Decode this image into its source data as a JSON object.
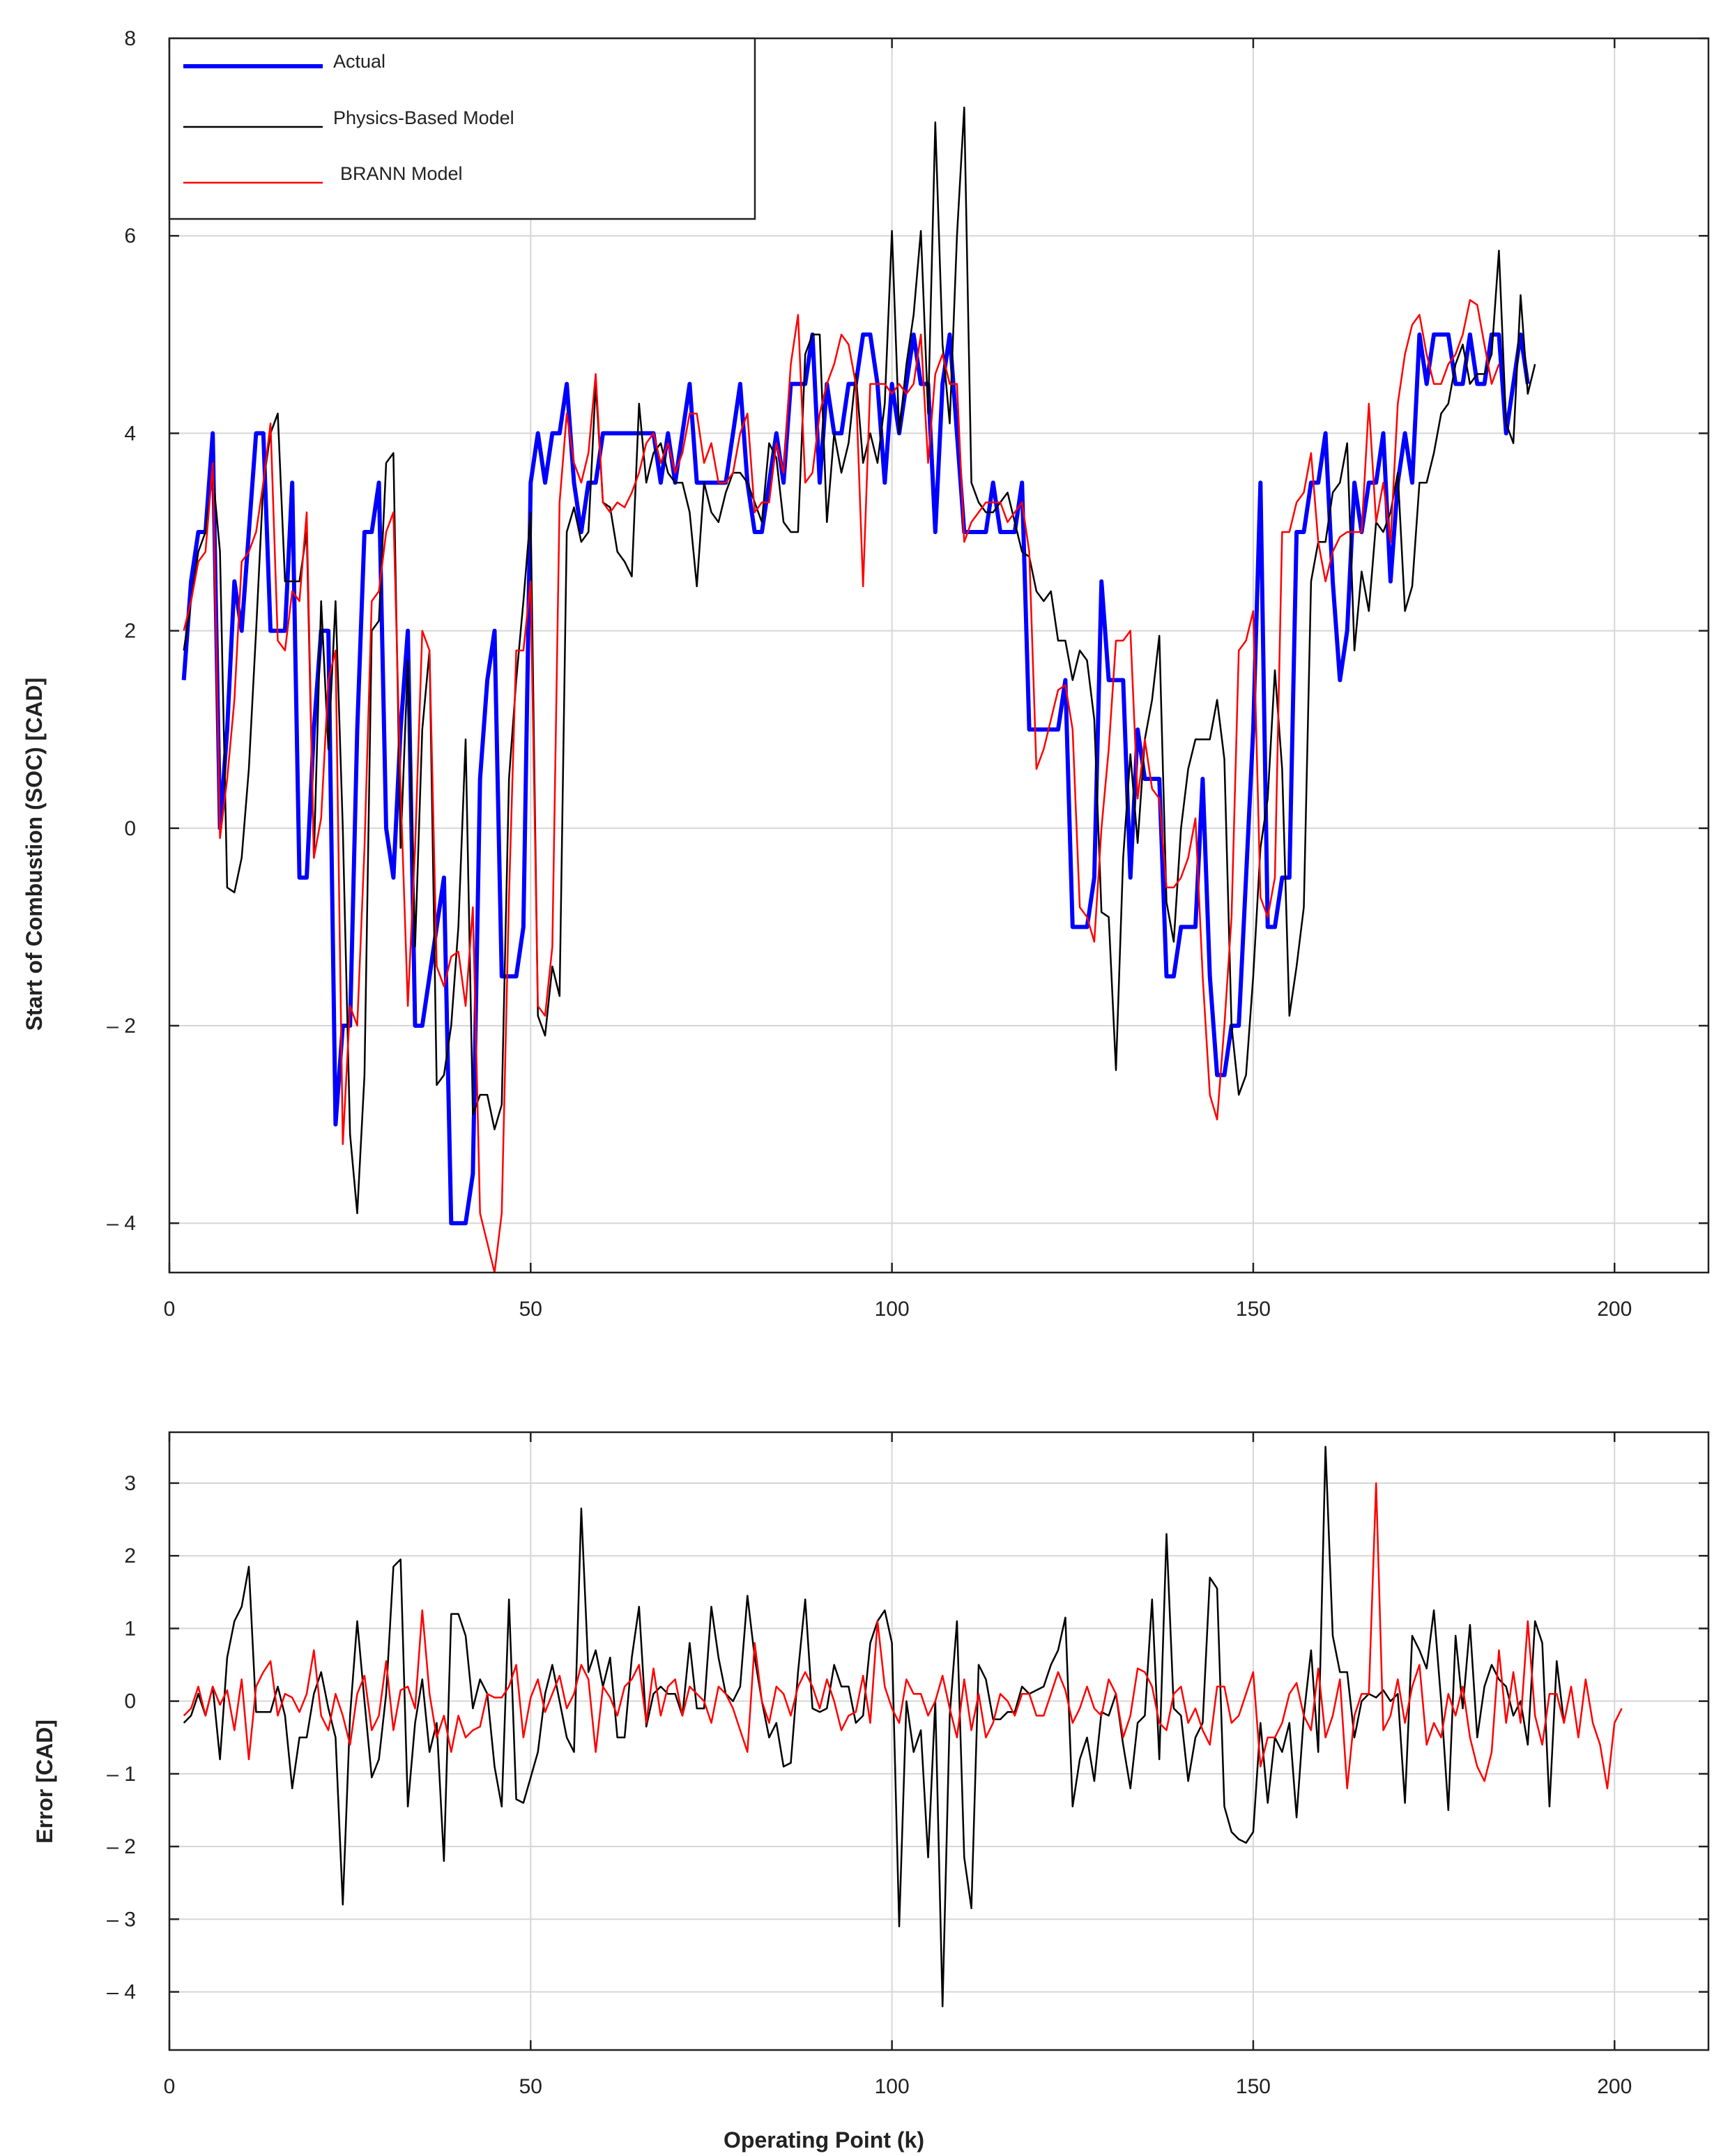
{
  "chart_data": [
    {
      "type": "line",
      "xlabel": "",
      "ylabel": "Start of Combustion (SOC) [CAD]",
      "xlim": [
        0,
        213
      ],
      "ylim": [
        -4.5,
        8
      ],
      "x_ticks": [
        0,
        50,
        100,
        150,
        200
      ],
      "y_ticks": [
        -4,
        -2,
        0,
        2,
        4,
        6,
        8
      ],
      "x_tick_labels": [
        "0",
        "50",
        "100",
        "150",
        "200"
      ],
      "y_tick_labels": [
        "– 4",
        "– 2",
        "0",
        "2",
        "4",
        "6",
        "8"
      ],
      "grid": true,
      "legend_position": "top-left",
      "x_start": 2,
      "series": [
        {
          "name": "Actual",
          "color": "#0000ff",
          "values": [
            1.5,
            2.5,
            3,
            3,
            4,
            0,
            1,
            2.5,
            2,
            3,
            4,
            4,
            2,
            2,
            2,
            3.5,
            -0.5,
            -0.5,
            1,
            2,
            2,
            -3,
            -2,
            -2,
            1,
            3,
            3,
            3.5,
            0,
            -0.5,
            1,
            2,
            -2,
            -2,
            -1.5,
            -1,
            -0.5,
            -4,
            -4,
            -4,
            -3.5,
            0.5,
            1.5,
            2,
            -1.5,
            -1.5,
            -1.5,
            -1,
            3.5,
            4,
            3.5,
            4,
            4,
            4.5,
            3.5,
            3,
            3.5,
            3.5,
            4,
            4,
            4,
            4,
            4,
            4,
            4,
            4,
            3.5,
            4,
            3.5,
            4,
            4.5,
            3.5,
            3.5,
            3.5,
            3.5,
            3.5,
            4,
            4.5,
            3.5,
            3,
            3,
            3.5,
            4,
            3.5,
            4.5,
            4.5,
            4.5,
            5,
            3.5,
            4.5,
            4,
            4,
            4.5,
            4.5,
            5,
            5,
            4.5,
            3.5,
            4.5,
            4,
            4.5,
            5,
            4.5,
            4.5,
            3,
            4.5,
            5,
            4,
            3,
            3,
            3,
            3,
            3.5,
            3,
            3,
            3,
            3.5,
            1,
            1,
            1,
            1,
            1,
            1.5,
            -1,
            -1,
            -1,
            -0.5,
            2.5,
            1.5,
            1.5,
            1.5,
            -0.5,
            1,
            0.5,
            0.5,
            0.5,
            -1.5,
            -1.5,
            -1,
            -1,
            -1,
            0.5,
            -1.5,
            -2.5,
            -2.5,
            -2,
            -2,
            -0.5,
            1,
            3.5,
            -1,
            -1,
            -0.5,
            -0.5,
            3,
            3,
            3.5,
            3.5,
            4,
            2.5,
            1.5,
            2,
            3.5,
            3,
            3.5,
            3.5,
            4,
            2.5,
            3.5,
            4,
            3.5,
            5,
            4.5,
            5,
            5,
            5,
            4.5,
            4.5,
            5,
            4.5,
            4.5,
            5,
            5,
            4,
            4.5,
            5,
            4.5
          ]
        },
        {
          "name": "Physics-Based Model",
          "color": "#000000",
          "values": [
            1.8,
            2.3,
            2.8,
            3,
            3.6,
            2.8,
            -0.6,
            -0.65,
            -0.3,
            0.6,
            2,
            3.5,
            4,
            4.2,
            2.5,
            2.5,
            2.5,
            3,
            -0.3,
            2.3,
            0.8,
            2.3,
            0,
            -3.1,
            -3.9,
            -2.5,
            2,
            2.1,
            3.7,
            3.8,
            -0.2,
            1.7,
            -1.2,
            1,
            1.8,
            -2.6,
            -2.5,
            -2,
            -1,
            0.9,
            -2.9,
            -2.7,
            -2.7,
            -3.05,
            -2.8,
            0.5,
            1.5,
            2.3,
            3.2,
            -1.9,
            -2.1,
            -1.4,
            -1.7,
            3,
            3.25,
            2.9,
            3,
            4.5,
            3.3,
            3.25,
            2.8,
            2.7,
            2.55,
            4.3,
            3.5,
            3.8,
            3.9,
            3.6,
            3.5,
            3.5,
            3.2,
            2.45,
            3.5,
            3.2,
            3.1,
            3.4,
            3.6,
            3.6,
            3.5,
            3.3,
            3.1,
            3.9,
            3.75,
            3.1,
            3,
            3,
            4.8,
            5,
            5,
            3.1,
            4,
            3.6,
            3.9,
            4.6,
            3.7,
            4,
            3.7,
            4.3,
            6.05,
            4,
            4.7,
            5.2,
            6.05,
            4.2,
            7.15,
            4.9,
            4.1,
            6,
            7.3,
            3.5,
            3.3,
            3.2,
            3.2,
            3.3,
            3.4,
            3.1,
            2.8,
            2.75,
            2.4,
            2.3,
            2.4,
            1.9,
            1.9,
            1.5,
            1.8,
            1.7,
            1.1,
            -0.85,
            -0.9,
            -2.45,
            -0.3,
            0.75,
            -0.15,
            0.9,
            1.3,
            1.95,
            -0.75,
            -1.15,
            0,
            0.6,
            0.9,
            0.9,
            0.9,
            1.3,
            0.7,
            -2,
            -2.7,
            -2.5,
            -1.5,
            -0.2,
            0.3,
            1.6,
            0.6,
            -1.9,
            -1.4,
            -0.8,
            2.5,
            2.9,
            2.9,
            3.4,
            3.5,
            3.9,
            1.8,
            2.6,
            2.2,
            3.1,
            3,
            3.2,
            3.6,
            2.2,
            2.45,
            3.5,
            3.5,
            3.8,
            4.2,
            4.3,
            4.7,
            4.9,
            4.5,
            4.6,
            4.6,
            4.8,
            5.85,
            4.1,
            3.9,
            5.4,
            4.4,
            4.7
          ]
        },
        {
          "name": "BRANN Model",
          "color": "#ff0000",
          "values": [
            2,
            2.3,
            2.7,
            2.8,
            3.7,
            -0.1,
            0.5,
            1.3,
            2.7,
            2.8,
            3,
            3.5,
            4.1,
            1.9,
            1.8,
            2.4,
            2.3,
            3.2,
            -0.3,
            0.1,
            1.5,
            1.8,
            -3.2,
            -1.8,
            -2,
            -0.2,
            2.3,
            2.4,
            3,
            3.2,
            0.4,
            -1.8,
            -0.2,
            2,
            1.8,
            -1.4,
            -1.6,
            -1.3,
            -1.25,
            -1.8,
            -0.8,
            -3.9,
            -4.2,
            -4.5,
            -3.9,
            -0.7,
            1.8,
            1.8,
            2.5,
            -1.8,
            -1.9,
            -1.2,
            3.3,
            4.2,
            3.7,
            3.5,
            3.8,
            4.6,
            3.3,
            3.2,
            3.3,
            3.25,
            3.4,
            3.6,
            3.9,
            4,
            3.7,
            3.9,
            3.6,
            3.8,
            4.2,
            4.2,
            3.7,
            3.9,
            3.5,
            3.5,
            3.6,
            4,
            4.2,
            3.2,
            3.3,
            3.3,
            3.9,
            3.6,
            4.7,
            5.2,
            3.5,
            3.6,
            4.2,
            4.5,
            4.7,
            5,
            4.9,
            4.5,
            2.45,
            4.5,
            4.5,
            4.5,
            4.4,
            4.5,
            4.4,
            4.5,
            5,
            3.7,
            4.6,
            4.8,
            4.5,
            4.5,
            2.9,
            3.1,
            3.2,
            3.3,
            3.3,
            3.3,
            3.1,
            3.2,
            3.3,
            2.8,
            0.6,
            0.8,
            1.1,
            1.4,
            1.45,
            1,
            -0.8,
            -0.9,
            -1.15,
            0,
            0.8,
            1.9,
            1.9,
            2,
            0.3,
            0.9,
            0.4,
            0.3,
            -0.6,
            -0.6,
            -0.5,
            -0.3,
            0.1,
            -1.5,
            -2.7,
            -2.95,
            -2,
            -0.9,
            1.8,
            1.9,
            2.2,
            -0.7,
            -0.9,
            -0.5,
            3,
            3,
            3.3,
            3.4,
            3.8,
            2.9,
            2.5,
            2.8,
            2.95,
            3,
            3,
            3,
            4.3,
            3.1,
            3.5,
            2.9,
            4.3,
            4.8,
            5.1,
            5.2,
            4.8,
            4.5,
            4.5,
            4.7,
            4.8,
            5,
            5.35,
            5.3,
            4.9,
            4.5,
            4.7
          ]
        }
      ]
    },
    {
      "type": "line",
      "xlabel": "Operating Point (k)",
      "ylabel": "Error [CAD]",
      "xlim": [
        0,
        213
      ],
      "ylim": [
        -4.8,
        3.7
      ],
      "x_ticks": [
        0,
        50,
        100,
        150,
        200
      ],
      "y_ticks": [
        -4,
        -3,
        -2,
        -1,
        0,
        1,
        2,
        3
      ],
      "x_tick_labels": [
        "0",
        "50",
        "100",
        "150",
        "200"
      ],
      "y_tick_labels": [
        "– 4",
        "– 3",
        "– 2",
        "– 1",
        "0",
        "1",
        "2",
        "3"
      ],
      "grid": true,
      "x_start": 2,
      "series": [
        {
          "name": "Physics-Based Model",
          "color": "#000000",
          "values": [
            -0.3,
            -0.2,
            0.1,
            -0.2,
            0.2,
            -0.8,
            0.6,
            1.1,
            1.3,
            1.85,
            -0.15,
            -0.15,
            -0.15,
            0.2,
            -0.2,
            -1.2,
            -0.5,
            -0.5,
            0.1,
            0.4,
            -0.1,
            -0.5,
            -2.8,
            -0.2,
            1.1,
            0,
            -1.05,
            -0.8,
            0.1,
            1.85,
            1.95,
            -1.45,
            -0.3,
            0.3,
            -0.7,
            -0.3,
            -2.2,
            1.2,
            1.2,
            0.9,
            -0.1,
            0.3,
            0.1,
            -0.9,
            -1.45,
            1.4,
            -1.35,
            -1.4,
            -1.05,
            -0.7,
            0.1,
            0.5,
            0,
            -0.5,
            -0.7,
            2.65,
            0.4,
            0.7,
            0.2,
            0.6,
            -0.5,
            -0.5,
            0.6,
            1.3,
            -0.35,
            0.1,
            0.2,
            0.1,
            0.1,
            -0.2,
            0.8,
            -0.1,
            -0.1,
            1.3,
            0.6,
            0.1,
            0,
            0.2,
            1.45,
            0.6,
            0,
            -0.5,
            -0.3,
            -0.9,
            -0.85,
            0.4,
            1.4,
            -0.1,
            -0.15,
            -0.1,
            0.5,
            0.2,
            0.2,
            -0.3,
            -0.2,
            0.8,
            1.1,
            1.25,
            0.8,
            -3.1,
            0,
            -0.7,
            -0.4,
            -2.15,
            0,
            -4.2,
            -0.2,
            1.1,
            -2.15,
            -2.85,
            0.5,
            0.3,
            -0.25,
            -0.25,
            -0.15,
            -0.15,
            0.2,
            0.1,
            0.15,
            0.2,
            0.5,
            0.7,
            1.15,
            -1.45,
            -0.8,
            -0.5,
            -1.1,
            -0.15,
            -0.2,
            0.1,
            -0.6,
            -1.2,
            -0.3,
            -0.2,
            1.4,
            -0.8,
            2.3,
            -0.1,
            -0.2,
            -1.1,
            -0.5,
            -0.3,
            1.7,
            1.55,
            -1.45,
            -1.8,
            -1.9,
            -1.95,
            -1.8,
            -0.3,
            -1.4,
            -0.5,
            -0.7,
            -0.3,
            -1.6,
            -0.2,
            0.7,
            -0.7,
            3.5,
            0.9,
            0.4,
            0.4,
            -0.5,
            0,
            0.1,
            0.05,
            0.15,
            0,
            0.1,
            -1.4,
            0.9,
            0.7,
            0.45,
            1.25,
            0,
            -1.5,
            0.9,
            -0.1,
            1.05,
            -0.5,
            0.2,
            0.5,
            0.3,
            0.2,
            -0.2,
            0,
            -0.6,
            1.1,
            0.8,
            -1.45,
            0.55,
            -0.3
          ]
        },
        {
          "name": "BRANN Model",
          "color": "#ff0000",
          "values": [
            -0.2,
            -0.1,
            0.2,
            -0.2,
            0.2,
            -0.05,
            0.15,
            -0.4,
            0.3,
            -0.8,
            0.2,
            0.4,
            0.55,
            -0.2,
            0.1,
            0.05,
            -0.15,
            0.1,
            0.7,
            -0.2,
            -0.4,
            0.1,
            -0.2,
            -0.6,
            0.1,
            0.35,
            -0.4,
            -0.2,
            0.55,
            -0.4,
            0.15,
            0.2,
            -0.1,
            1.25,
            0.1,
            -0.5,
            -0.2,
            -0.7,
            -0.2,
            -0.5,
            -0.4,
            -0.35,
            0.1,
            0.05,
            0.05,
            0.2,
            0.5,
            -0.5,
            0.05,
            0.3,
            -0.15,
            0.1,
            0.35,
            -0.1,
            0.1,
            0.5,
            0.3,
            -0.7,
            0.2,
            0.05,
            -0.2,
            0.2,
            0.3,
            0.5,
            -0.3,
            0.45,
            -0.2,
            0.2,
            0.3,
            -0.2,
            0.2,
            0.1,
            0,
            -0.3,
            0.2,
            0.1,
            -0.1,
            -0.4,
            -0.7,
            0.8,
            0,
            -0.3,
            0.2,
            0.1,
            -0.2,
            0.2,
            0.4,
            0.2,
            -0.1,
            0.3,
            0,
            -0.4,
            -0.2,
            -0.15,
            0.35,
            -0.3,
            1.1,
            0.2,
            -0.1,
            -0.3,
            0.3,
            0.1,
            0.1,
            -0.2,
            0,
            0.35,
            -0.1,
            -0.5,
            0.3,
            -0.4,
            0.1,
            -0.5,
            -0.3,
            0.1,
            0,
            -0.2,
            0.1,
            0.1,
            -0.2,
            -0.2,
            0.1,
            0.4,
            0.15,
            -0.3,
            -0.1,
            0.2,
            -0.1,
            -0.2,
            0.3,
            0.1,
            -0.5,
            -0.2,
            0.45,
            0.4,
            0.2,
            -0.3,
            -0.4,
            0.1,
            0.2,
            -0.3,
            -0.1,
            -0.4,
            -0.6,
            0.2,
            0.2,
            -0.3,
            -0.2,
            0.1,
            0.4,
            -0.9,
            -0.5,
            -0.5,
            -0.3,
            0.1,
            0.25,
            -0.2,
            -0.4,
            0.45,
            -0.5,
            -0.2,
            0.3,
            -1.2,
            -0.2,
            0.1,
            0.1,
            3,
            -0.4,
            -0.2,
            0.3,
            -0.3,
            0.2,
            0.5,
            -0.6,
            -0.3,
            -0.5,
            0.1,
            -0.2,
            0.2,
            -0.5,
            -0.9,
            -1.1,
            -0.7,
            0.7,
            -0.3,
            0.4,
            -0.3,
            1.1,
            -0.2,
            -0.6,
            0.1,
            0.1,
            -0.3,
            0.2,
            -0.5,
            0.3,
            -0.3,
            -0.6,
            -1.2,
            -0.3,
            -0.1
          ]
        }
      ]
    }
  ]
}
